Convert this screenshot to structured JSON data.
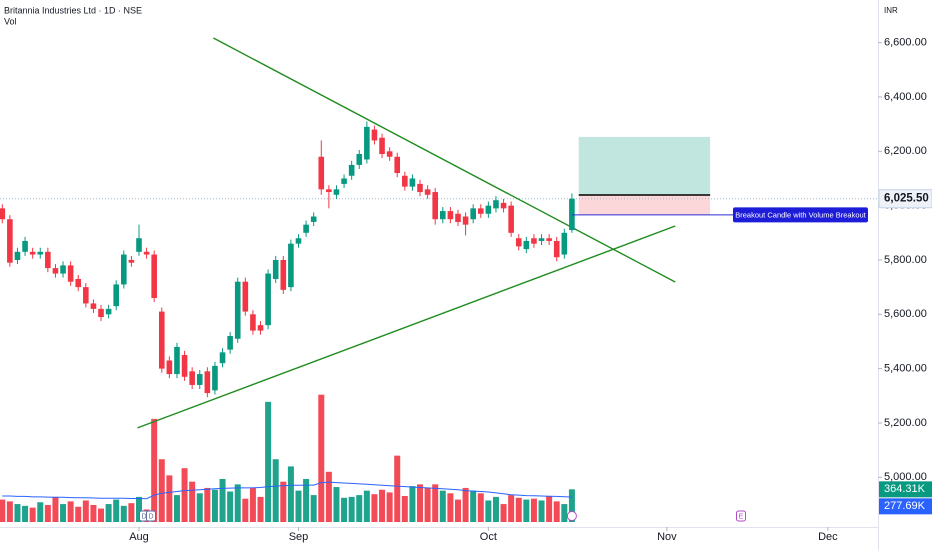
{
  "chart_data": {
    "type": "candlestick",
    "title": "Britannia Industries Ltd · 1D · NSE",
    "currency": "INR",
    "up_color": "#089981",
    "down_color": "#f23645",
    "ylim": [
      4817,
      6757
    ],
    "yticks": [
      {
        "value": 6600,
        "label": "6,600.00"
      },
      {
        "value": 6400,
        "label": "6,400.00"
      },
      {
        "value": 6200,
        "label": "6,200.00"
      },
      {
        "value": 6000,
        "label": "6,000.00"
      },
      {
        "value": 5800,
        "label": "5,800.00"
      },
      {
        "value": 5600,
        "label": "5,600.00"
      },
      {
        "value": 5400,
        "label": "5,400.00"
      },
      {
        "value": 5200,
        "label": "5,200.00"
      },
      {
        "value": 5000,
        "label": "5,000.00"
      }
    ],
    "xlim": [
      -0.3,
      115.3
    ],
    "xticks": [
      {
        "value": 18,
        "label": "Aug"
      },
      {
        "value": 39,
        "label": "Sep"
      },
      {
        "value": 64,
        "label": "Oct"
      },
      {
        "value": 87.5,
        "label": "Nov"
      },
      {
        "value": 108.7,
        "label": "Dec"
      }
    ],
    "open": [
      5990,
      5950,
      5800,
      5830,
      5830,
      5820,
      5830,
      5770,
      5750,
      5780,
      5730,
      5700,
      5640,
      5620,
      5600,
      5630,
      5710,
      5800,
      5830,
      5830,
      5820,
      5610,
      5430,
      5380,
      5450,
      5390,
      5340,
      5390,
      5320,
      5420,
      5470,
      5510,
      5720,
      5600,
      5560,
      5560,
      5730,
      5800,
      5700,
      5860,
      5900,
      5940,
      6180,
      6060,
      6040,
      6080,
      6110,
      6150,
      6170,
      6280,
      6250,
      6200,
      6180,
      6110,
      6070,
      6080,
      6060,
      6050,
      5950,
      5980,
      5970,
      5960,
      5950,
      5990,
      5970,
      5990,
      6010,
      6000,
      5880,
      5840,
      5880,
      5870,
      5880,
      5870,
      5820,
      5910
    ],
    "high": [
      6005,
      5965,
      5845,
      5885,
      5845,
      5845,
      5845,
      5785,
      5795,
      5795,
      5745,
      5715,
      5655,
      5635,
      5635,
      5725,
      5835,
      5815,
      5930,
      5845,
      5835,
      5625,
      5445,
      5495,
      5465,
      5405,
      5395,
      5405,
      5425,
      5475,
      5535,
      5735,
      5735,
      5615,
      5575,
      5765,
      5815,
      5815,
      5875,
      5895,
      5945,
      5975,
      6240,
      6075,
      6075,
      6115,
      6165,
      6205,
      6310,
      6295,
      6265,
      6215,
      6195,
      6125,
      6115,
      6095,
      6075,
      6065,
      5995,
      5995,
      5985,
      5975,
      6005,
      6005,
      6015,
      6035,
      6025,
      6015,
      5895,
      5885,
      5895,
      5895,
      5895,
      5885,
      5915,
      6045
    ],
    "low": [
      5935,
      5775,
      5785,
      5815,
      5805,
      5805,
      5755,
      5735,
      5735,
      5705,
      5685,
      5625,
      5605,
      5575,
      5585,
      5615,
      5695,
      5775,
      5815,
      5805,
      5645,
      5385,
      5365,
      5365,
      5355,
      5325,
      5325,
      5295,
      5305,
      5405,
      5455,
      5495,
      5595,
      5525,
      5525,
      5545,
      5715,
      5675,
      5685,
      5845,
      5885,
      5925,
      6040,
      5990,
      6025,
      6065,
      6095,
      6135,
      6155,
      6225,
      6175,
      6165,
      6105,
      6055,
      6055,
      6035,
      6025,
      5930,
      5935,
      5935,
      5925,
      5890,
      5935,
      5955,
      5955,
      5975,
      5975,
      5885,
      5835,
      5825,
      5845,
      5855,
      5855,
      5795,
      5805,
      5900
    ],
    "close": [
      5950,
      5790,
      5830,
      5870,
      5820,
      5830,
      5770,
      5750,
      5780,
      5720,
      5700,
      5640,
      5620,
      5590,
      5620,
      5710,
      5820,
      5790,
      5880,
      5820,
      5660,
      5400,
      5380,
      5480,
      5370,
      5340,
      5380,
      5310,
      5410,
      5460,
      5520,
      5720,
      5610,
      5540,
      5540,
      5750,
      5800,
      5690,
      5860,
      5880,
      5930,
      5960,
      6060,
      6050,
      6060,
      6100,
      6150,
      6190,
      6290,
      6240,
      6190,
      6180,
      6120,
      6070,
      6100,
      6050,
      6040,
      5950,
      5980,
      5950,
      5940,
      5930,
      5990,
      5970,
      6000,
      6020,
      5990,
      5900,
      5850,
      5870,
      5860,
      5880,
      5870,
      5810,
      5900,
      6025.5
    ],
    "last_price": {
      "value": 6025.5,
      "label": "6,025.50"
    },
    "volume": {
      "name": "Vol",
      "ylim": [
        0,
        1450
      ],
      "values": [
        250,
        230,
        200,
        180,
        160,
        220,
        190,
        280,
        200,
        230,
        170,
        240,
        190,
        150,
        200,
        250,
        180,
        210,
        280,
        140,
        1150,
        700,
        520,
        300,
        600,
        450,
        320,
        380,
        360,
        480,
        340,
        420,
        260,
        380,
        280,
        1340,
        700,
        450,
        620,
        350,
        480,
        300,
        1420,
        560,
        390,
        270,
        280,
        300,
        350,
        310,
        360,
        330,
        740,
        290,
        400,
        420,
        380,
        420,
        350,
        320,
        250,
        380,
        350,
        320,
        240,
        280,
        200,
        300,
        270,
        250,
        260,
        240,
        290,
        230,
        200,
        364.31
      ],
      "value_label": "364.31K",
      "ma_color": "#2962ff",
      "ma_values": [
        290,
        290,
        285,
        285,
        280,
        280,
        278,
        275,
        275,
        272,
        270,
        270,
        268,
        265,
        265,
        265,
        265,
        262,
        262,
        260,
        300,
        320,
        330,
        340,
        350,
        355,
        360,
        365,
        370,
        375,
        378,
        380,
        380,
        382,
        385,
        395,
        400,
        405,
        410,
        410,
        412,
        412,
        440,
        445,
        440,
        435,
        430,
        425,
        420,
        415,
        410,
        405,
        400,
        395,
        390,
        385,
        380,
        375,
        370,
        365,
        360,
        350,
        345,
        340,
        335,
        325,
        315,
        305,
        300,
        295,
        292,
        290,
        288,
        285,
        282,
        277.69
      ],
      "ma_label": "277.69K"
    },
    "trendlines": [
      {
        "color": "#1e8c1e",
        "x": [
          27.8,
          88.6
        ],
        "y": [
          6617,
          5719
        ]
      },
      {
        "color": "#1e8c1e",
        "x": [
          17.8,
          88.6
        ],
        "y": [
          5182,
          5925
        ]
      }
    ],
    "position": {
      "x": [
        75.9,
        93.2
      ],
      "target": 6253,
      "entry": 6039,
      "stop": 5966
    },
    "annotation": {
      "text": "Breakout Candle with Volume Breakout",
      "x": 75,
      "y": 5966
    },
    "events": [
      "D",
      "D",
      "E"
    ]
  }
}
